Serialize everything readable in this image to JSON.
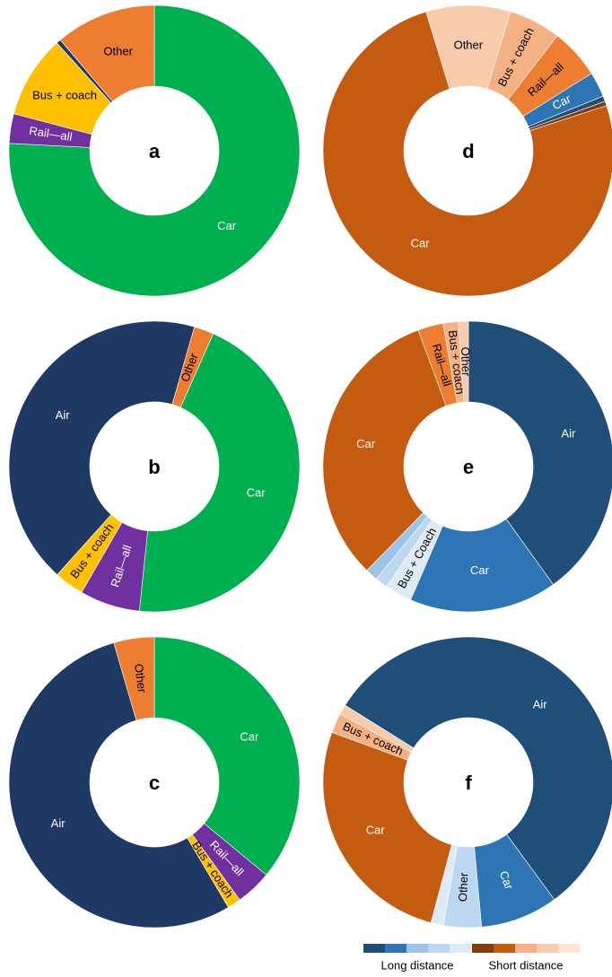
{
  "chart_data": [
    {
      "type": "pie",
      "title": "a",
      "categories": [
        "Car",
        "Rail—all",
        "Bus + coach",
        null,
        "Other"
      ],
      "values": [
        75.8,
        3.3,
        9.2,
        0.5,
        11.2
      ],
      "colors": [
        "#00b050",
        "#7030a0",
        "#ffc000",
        "#203864",
        "#ed7d31"
      ]
    },
    {
      "type": "pie",
      "title": "d",
      "categories": [
        "Other",
        "Bus + coach",
        "Rail—all",
        "Car",
        null,
        null,
        "Car"
      ],
      "values": [
        9.4,
        5.8,
        5.6,
        2.8,
        0.6,
        0.5,
        75.3
      ],
      "colors": [
        "#f8cbad",
        "#f4b183",
        "#ed7d31",
        "#2e75b6",
        "#1f4e79",
        "#843c0c",
        "#c55a11"
      ]
    },
    {
      "type": "pie",
      "title": "b",
      "categories": [
        "Other",
        "Car",
        "Rail—all",
        "Bus + coach",
        "Air"
      ],
      "values": [
        2.2,
        45,
        6.7,
        3.3,
        42.8
      ],
      "colors": [
        "#ed7d31",
        "#00b050",
        "#7030a0",
        "#ffc000",
        "#203864"
      ]
    },
    {
      "type": "pie",
      "title": "e",
      "categories": [
        "Air",
        "Car",
        "Bus + Coach",
        null,
        null,
        "Car",
        "Rail—all",
        "Bus + coach",
        "Other"
      ],
      "values": [
        40,
        16.4,
        3,
        1.4,
        1.4,
        32,
        2.8,
        1.7,
        1.1
      ],
      "colors": [
        "#1f4e79",
        "#2e75b6",
        "#deebf7",
        "#bdd7ee",
        "#9dc3e6",
        "#c55a11",
        "#ed7d31",
        "#f4b183",
        "#f8cbad"
      ]
    },
    {
      "type": "pie",
      "title": "c",
      "categories": [
        "Car",
        "Rail—all",
        "Bus + coach",
        "Air",
        "Other"
      ],
      "values": [
        36,
        4,
        1.5,
        54,
        4.5
      ],
      "colors": [
        "#00b050",
        "#7030a0",
        "#ffc000",
        "#203864",
        "#ed7d31"
      ]
    },
    {
      "type": "pie",
      "title": "f",
      "categories": [
        "Air",
        "Car",
        "Other",
        null,
        "Car",
        "Bus + coach",
        null
      ],
      "values": [
        56,
        8.6,
        4.2,
        1.4,
        26.4,
        2.2,
        1.1
      ],
      "colors": [
        "#1f4e79",
        "#2e75b6",
        "#bdd7ee",
        "#deebf7",
        "#c55a11",
        "#f4b183",
        "#f8cbad"
      ]
    }
  ],
  "legend": [
    {
      "label": "Long distance",
      "colors": [
        "#1f4e79",
        "#2e75b6",
        "#9dc3e6",
        "#bdd7ee",
        "#deebf7"
      ]
    },
    {
      "label": "Short distance",
      "colors": [
        "#843c0c",
        "#c55a11",
        "#f4b183",
        "#f8cbad",
        "#fbe5d6"
      ]
    }
  ]
}
